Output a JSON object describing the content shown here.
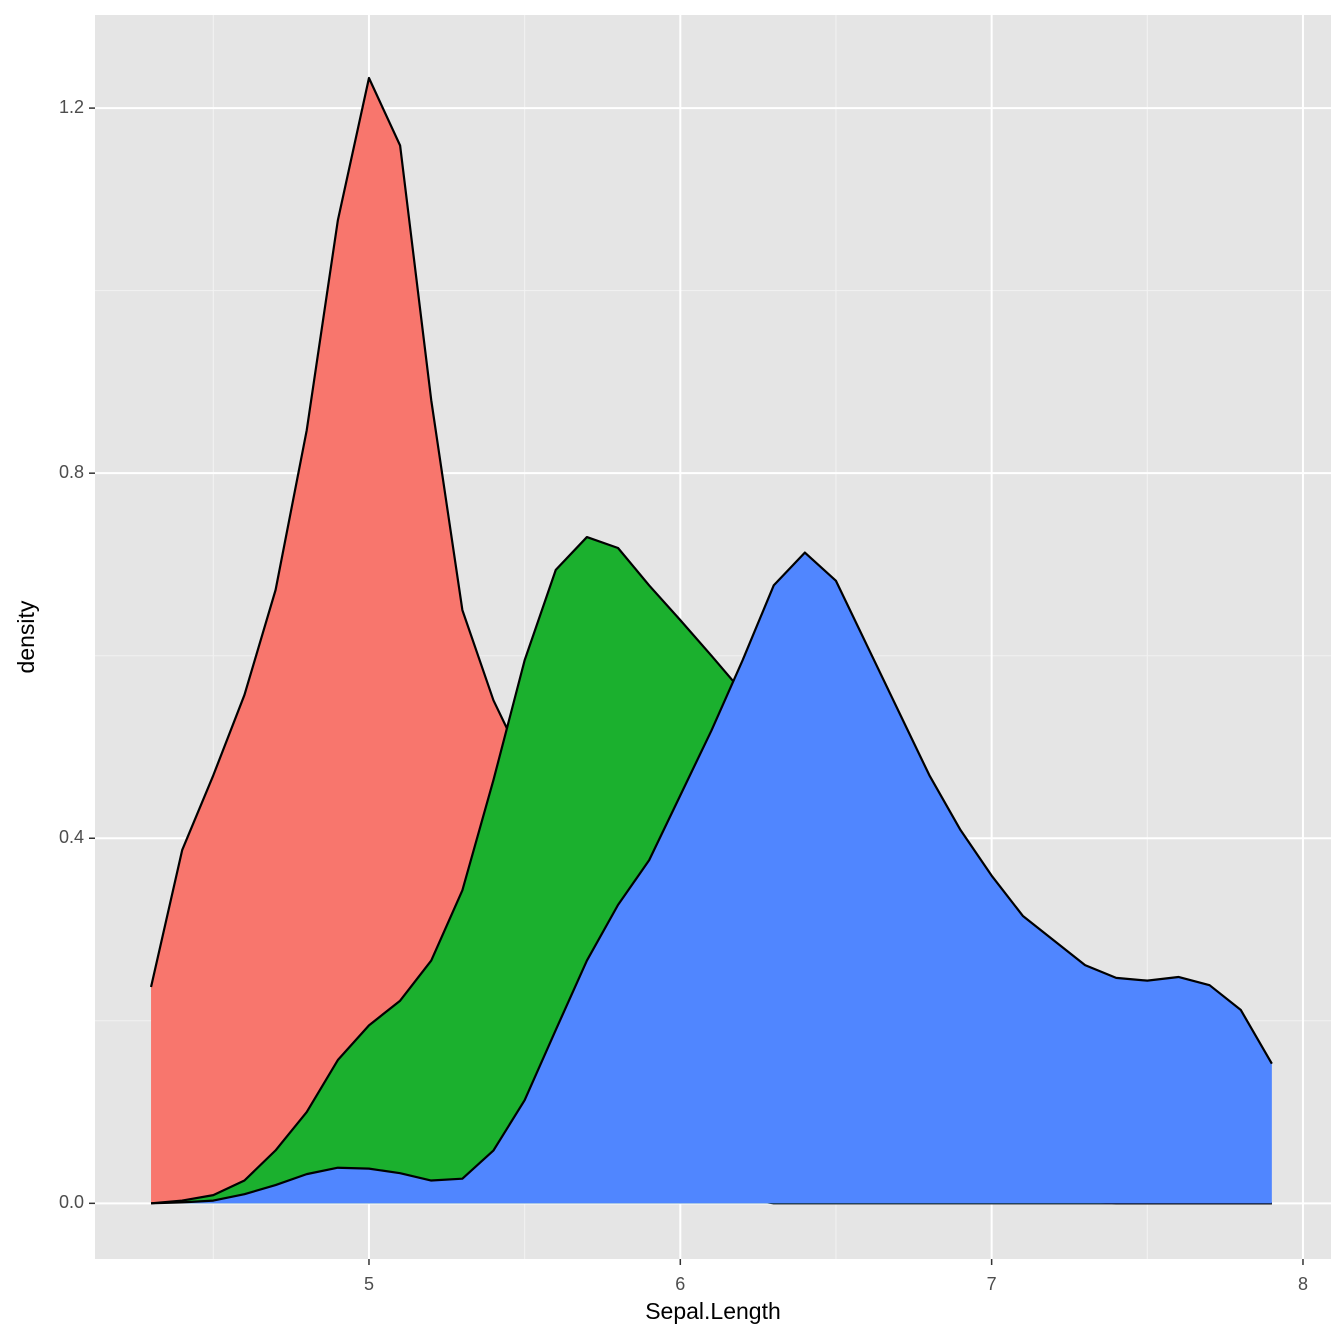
{
  "chart_data": {
    "type": "area",
    "x_label": "Sepal.Length",
    "y_label": "density",
    "x": [
      4.3,
      4.4,
      4.5,
      4.6,
      4.7,
      4.8,
      4.9,
      5.0,
      5.1,
      5.2,
      5.3,
      5.4,
      5.5,
      5.6,
      5.7,
      5.8,
      5.9,
      6.0,
      6.1,
      6.2,
      6.3,
      6.4,
      6.5,
      6.6,
      6.7,
      6.8,
      6.9,
      7.0,
      7.1,
      7.2,
      7.3,
      7.4,
      7.5,
      7.6,
      7.7,
      7.8,
      7.9
    ],
    "series": [
      {
        "color": "#f8766d",
        "values": [
          0.237,
          0.387,
          0.469,
          0.557,
          0.672,
          0.847,
          1.077,
          1.233,
          1.159,
          0.88,
          0.65,
          0.551,
          0.48,
          0.35,
          0.25,
          0.2,
          0.12,
          0.06,
          0.02,
          0.005,
          0,
          0,
          0,
          0,
          0,
          0,
          0,
          0,
          0,
          0,
          0,
          0,
          0,
          0,
          0,
          0,
          0
        ]
      },
      {
        "color": "#1bb02e",
        "values": [
          0,
          0.003,
          0.009,
          0.025,
          0.058,
          0.1,
          0.157,
          0.195,
          0.222,
          0.266,
          0.343,
          0.464,
          0.595,
          0.694,
          0.73,
          0.718,
          0.677,
          0.639,
          0.6,
          0.56,
          0.5,
          0.42,
          0.32,
          0.23,
          0.16,
          0.11,
          0.07,
          0.04,
          0.02,
          0.008,
          0.003,
          0,
          0,
          0,
          0,
          0,
          0
        ]
      },
      {
        "color": "#5086ff",
        "values": [
          0,
          0.001,
          0.003,
          0.01,
          0.02,
          0.032,
          0.039,
          0.038,
          0.033,
          0.025,
          0.027,
          0.058,
          0.113,
          0.19,
          0.266,
          0.327,
          0.376,
          0.447,
          0.518,
          0.595,
          0.677,
          0.713,
          0.682,
          0.611,
          0.54,
          0.469,
          0.409,
          0.359,
          0.315,
          0.288,
          0.261,
          0.247,
          0.244,
          0.248,
          0.239,
          0.212,
          0.153
        ]
      }
    ],
    "xlim": [
      4.12,
      8.09
    ],
    "ylim": [
      -0.061,
      1.302
    ],
    "xticks": [
      5,
      6,
      7,
      8
    ],
    "yticks": [
      {
        "value": 0,
        "label": "0.0"
      },
      0.4,
      0.8,
      1.2
    ],
    "xminor": [
      4.5,
      5.5,
      6.5,
      7.5
    ],
    "yminor": [
      0.2,
      0.6,
      1.0
    ],
    "grid": true
  }
}
